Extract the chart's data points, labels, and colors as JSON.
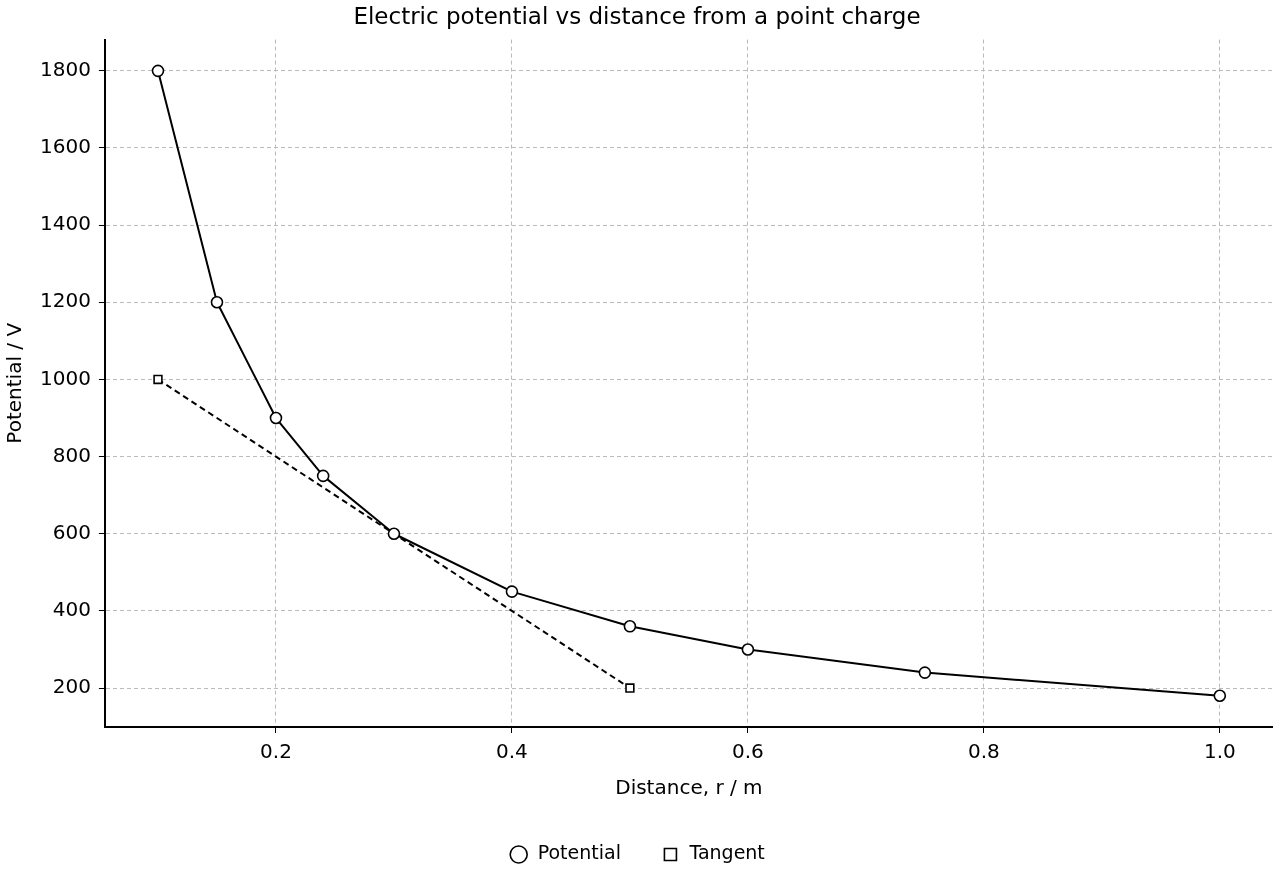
{
  "chart_data": {
    "type": "line",
    "title": "Electric potential vs distance from a point charge",
    "xlabel": "Distance, r / m",
    "ylabel": "Potential / V",
    "series": [
      {
        "name": "Potential",
        "color": "#000000",
        "marker": "circle",
        "line_style": "solid",
        "x": [
          0.1,
          0.15,
          0.2,
          0.24,
          0.3,
          0.4,
          0.5,
          0.6,
          0.75,
          1.0
        ],
        "values": [
          1800,
          1200,
          900,
          750,
          600,
          450,
          360,
          300,
          240,
          180
        ]
      },
      {
        "name": "Tangent",
        "color": "#000000",
        "marker": "square",
        "line_style": "dashed",
        "x": [
          0.1,
          0.5
        ],
        "values": [
          1000,
          200
        ]
      }
    ],
    "xlim": [
      0.055,
      1.045
    ],
    "xticks": [
      0.2,
      0.4,
      0.6,
      0.8,
      {
        "value": 1,
        "label": "1.0"
      }
    ],
    "ylim": [
      99,
      1881
    ],
    "yticks": [
      200,
      400,
      600,
      800,
      1000,
      1200,
      1400,
      1600,
      1800
    ],
    "grid": true,
    "legend": "bottom"
  }
}
